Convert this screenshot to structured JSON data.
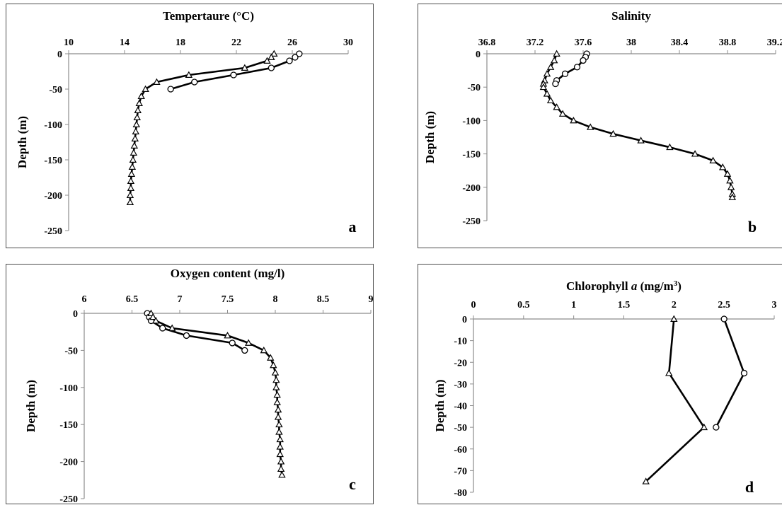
{
  "chart_data": [
    {
      "type": "line",
      "letter": "a",
      "title": "Tempertaure (°C)",
      "title_parts": [
        "Tempertaure (°C)"
      ],
      "ylabel": "Depth (m)",
      "xlim": [
        10,
        30
      ],
      "xticks": [
        10,
        14,
        18,
        22,
        26,
        30
      ],
      "ylim": [
        -250,
        0
      ],
      "yticks": [
        0,
        -50,
        -100,
        -150,
        -200,
        -250
      ],
      "series": [
        {
          "marker": "circle",
          "x": [
            26.5,
            26.2,
            25.8,
            24.5,
            21.8,
            19.0,
            17.3
          ],
          "y": [
            0,
            -5,
            -10,
            -20,
            -30,
            -40,
            -50
          ]
        },
        {
          "marker": "triangle",
          "x": [
            24.7,
            24.5,
            24.2,
            22.6,
            18.6,
            16.3,
            15.5,
            15.2,
            15.05,
            14.95,
            14.9,
            14.85,
            14.8,
            14.75,
            14.7,
            14.65,
            14.6,
            14.55,
            14.5,
            14.45,
            14.45,
            14.4,
            14.4
          ],
          "y": [
            0,
            -5,
            -10,
            -20,
            -30,
            -40,
            -50,
            -60,
            -70,
            -80,
            -90,
            -100,
            -110,
            -120,
            -130,
            -140,
            -150,
            -160,
            -170,
            -180,
            -190,
            -200,
            -210
          ]
        }
      ]
    },
    {
      "type": "line",
      "letter": "b",
      "title": "Salinity",
      "title_parts": [
        "Salinity"
      ],
      "ylabel": "Depth (m)",
      "xlim": [
        36.8,
        39.2
      ],
      "xticks": [
        "36.8",
        "37.2",
        "37.6",
        "38",
        "38.4",
        "38.8",
        "39.2"
      ],
      "ylim": [
        -250,
        0
      ],
      "yticks": [
        0,
        -50,
        -100,
        -150,
        -200,
        -250
      ],
      "series": [
        {
          "marker": "circle",
          "x": [
            37.63,
            37.62,
            37.6,
            37.55,
            37.45,
            37.38,
            37.37
          ],
          "y": [
            0,
            -5,
            -10,
            -20,
            -30,
            -40,
            -45
          ]
        },
        {
          "marker": "triangle",
          "x": [
            37.38,
            37.36,
            37.33,
            37.3,
            37.28,
            37.27,
            37.27,
            37.3,
            37.33,
            37.38,
            37.43,
            37.52,
            37.66,
            37.85,
            38.08,
            38.32,
            38.53,
            38.68,
            38.76,
            38.8,
            38.82,
            38.83,
            38.84,
            38.84
          ],
          "y": [
            0,
            -10,
            -20,
            -30,
            -40,
            -45,
            -50,
            -60,
            -70,
            -80,
            -90,
            -100,
            -110,
            -120,
            -130,
            -140,
            -150,
            -160,
            -170,
            -180,
            -190,
            -200,
            -210,
            -215
          ]
        }
      ]
    },
    {
      "type": "line",
      "letter": "c",
      "title": "Oxygen content (mg/l)",
      "title_parts": [
        "Oxygen content (mg/l)"
      ],
      "ylabel": "Depth (m)",
      "xlim": [
        6,
        9
      ],
      "xticks": [
        "6",
        "6.5",
        "7",
        "7.5",
        "8",
        "8.5",
        "9"
      ],
      "ylim": [
        -250,
        0
      ],
      "yticks": [
        0,
        -50,
        -100,
        -150,
        -200,
        -250
      ],
      "series": [
        {
          "marker": "circle",
          "x": [
            6.66,
            6.68,
            6.7,
            6.82,
            7.07,
            7.55,
            7.68
          ],
          "y": [
            0,
            -5,
            -10,
            -20,
            -30,
            -40,
            -50
          ]
        },
        {
          "marker": "triangle",
          "x": [
            6.7,
            6.72,
            6.75,
            6.92,
            7.5,
            7.72,
            7.88,
            7.95,
            7.98,
            8.0,
            8.01,
            8.01,
            8.02,
            8.02,
            8.03,
            8.03,
            8.04,
            8.04,
            8.05,
            8.05,
            8.05,
            8.06,
            8.06,
            8.07
          ],
          "y": [
            0,
            -5,
            -10,
            -20,
            -30,
            -40,
            -50,
            -60,
            -70,
            -80,
            -90,
            -100,
            -110,
            -120,
            -130,
            -140,
            -150,
            -160,
            -170,
            -180,
            -190,
            -200,
            -210,
            -218
          ]
        }
      ]
    },
    {
      "type": "line",
      "letter": "d",
      "title": "Chlorophyll a (mg/m3)",
      "title_parts": [
        "Chlorophyll ",
        "a",
        " (mg/m",
        "3",
        ")"
      ],
      "ylabel": "Depth (m)",
      "xlim": [
        0,
        3
      ],
      "xticks": [
        "0",
        "0.5",
        "1",
        "1.5",
        "2",
        "2.5",
        "3"
      ],
      "ylim": [
        -80,
        0
      ],
      "yticks": [
        0,
        -10,
        -20,
        -30,
        -40,
        -50,
        -60,
        -70,
        -80
      ],
      "series": [
        {
          "marker": "circle",
          "x": [
            2.5,
            2.7,
            2.42
          ],
          "y": [
            0,
            -25,
            -50
          ]
        },
        {
          "marker": "triangle",
          "x": [
            2.0,
            1.95,
            2.3,
            1.72
          ],
          "y": [
            0,
            -25,
            -50,
            -75
          ]
        }
      ]
    }
  ]
}
